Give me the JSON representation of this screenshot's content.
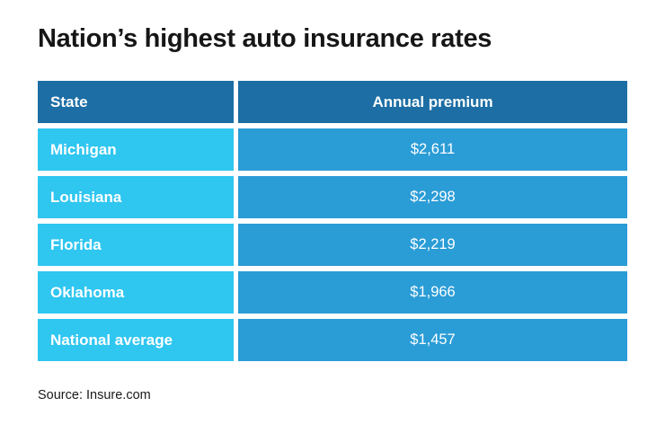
{
  "title": "Nation’s highest auto insurance rates",
  "source": "Source: Insure.com",
  "table": {
    "headers": {
      "state": "State",
      "premium": "Annual premium"
    },
    "rows": [
      {
        "state": "Michigan",
        "premium": "$2,611"
      },
      {
        "state": "Louisiana",
        "premium": "$2,298"
      },
      {
        "state": "Florida",
        "premium": "$2,219"
      },
      {
        "state": "Oklahoma",
        "premium": "$1,966"
      },
      {
        "state": "National average",
        "premium": "$1,457"
      }
    ]
  },
  "colors": {
    "header_bg": "#1c6ea4",
    "state_cell_bg": "#2fc6f0",
    "premium_cell_bg": "#2a9cd6",
    "text_on_blue": "#ffffff",
    "title_color": "#161616"
  },
  "chart_data": {
    "type": "table",
    "title": "Nation’s highest auto insurance rates",
    "columns": [
      "State",
      "Annual premium"
    ],
    "categories": [
      "Michigan",
      "Louisiana",
      "Florida",
      "Oklahoma",
      "National average"
    ],
    "values": [
      2611,
      2298,
      2219,
      1966,
      1457
    ],
    "value_unit": "USD per year",
    "legend_position": "none",
    "grid": false,
    "source": "Source: Insure.com"
  }
}
